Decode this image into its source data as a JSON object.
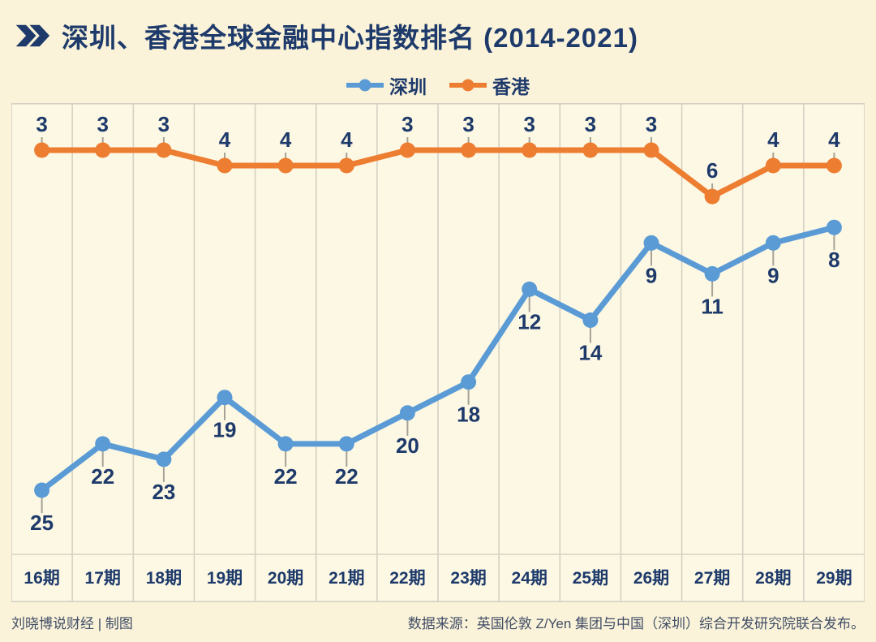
{
  "header": {
    "title": "深圳、香港全球金融中心指数排名 (2014-2021)"
  },
  "legend": [
    {
      "label": "深圳",
      "color": "#5b9bd5"
    },
    {
      "label": "香港",
      "color": "#ed7d31"
    }
  ],
  "chart_data": {
    "type": "line",
    "title": "深圳、香港全球金融中心指数排名 (2014-2021)",
    "categories": [
      "16期",
      "17期",
      "18期",
      "19期",
      "20期",
      "21期",
      "22期",
      "23期",
      "24期",
      "25期",
      "26期",
      "27期",
      "28期",
      "29期"
    ],
    "series": [
      {
        "name": "深圳",
        "color": "#5b9bd5",
        "values": [
          25,
          22,
          23,
          19,
          22,
          22,
          20,
          18,
          12,
          14,
          9,
          11,
          9,
          8
        ],
        "label_position": "below"
      },
      {
        "name": "香港",
        "color": "#ed7d31",
        "values": [
          3,
          3,
          3,
          4,
          4,
          4,
          3,
          3,
          3,
          3,
          3,
          6,
          4,
          4
        ],
        "label_position": "above"
      }
    ],
    "xlabel": "",
    "ylabel": "",
    "y_axis": {
      "inverted": true,
      "range": [
        1,
        30
      ]
    },
    "grid": "vertical-only",
    "legend_position": "top-center",
    "data_labels": "on"
  },
  "footer": {
    "credit": "刘晓博说财经 | 制图",
    "source": "数据来源：英国伦敦 Z/Yen 集团与中国（深圳）综合开发研究院联合发布。"
  },
  "colors": {
    "background": "#faf3d9",
    "plot_background": "#fcf8e4",
    "grid": "#d5d1c3",
    "navy_text": "#1e3a6b",
    "shenzhen_blue": "#5b9bd5",
    "hongkong_orange": "#ed7d31",
    "leader_line": "#a6a296",
    "footer_text": "#414d66"
  }
}
